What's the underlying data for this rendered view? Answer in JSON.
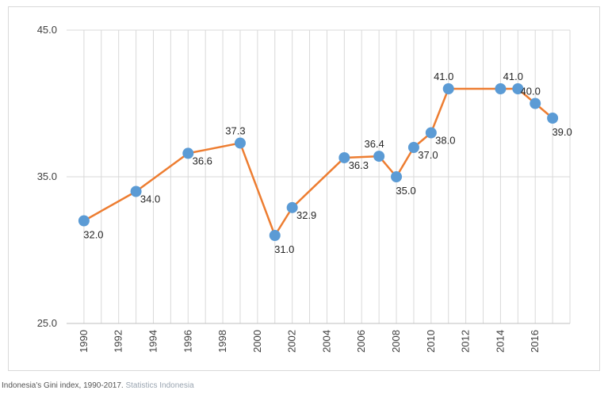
{
  "caption": {
    "text": "Indonesia's Gini index, 1990-2017.",
    "source": "Statistics Indonesia"
  },
  "colors": {
    "line": "#ED7D31",
    "marker": "#5B9BD5",
    "grid": "#d9d9d9",
    "axis": "#bfbfbf"
  },
  "chart_data": {
    "type": "line",
    "title": "",
    "xlabel": "",
    "ylabel": "",
    "xlim": [
      1989,
      2018
    ],
    "ylim": [
      25.0,
      45.0
    ],
    "grid": true,
    "legend": "none",
    "y_ticks": [
      "25.0",
      "35.0",
      "45.0"
    ],
    "y_tick_values": [
      25,
      35,
      45
    ],
    "x_ticks": [
      "1990",
      "1992",
      "1994",
      "1996",
      "1998",
      "2000",
      "2002",
      "2004",
      "2006",
      "2008",
      "2010",
      "2012",
      "2014",
      "2016"
    ],
    "series": [
      {
        "x": [
          1990,
          1993,
          1996,
          1999,
          2001,
          2002,
          2005,
          2007,
          2008,
          2009,
          2010,
          2011,
          2014,
          2015,
          2016,
          2017
        ],
        "values": [
          32.0,
          34.0,
          36.6,
          37.3,
          31.0,
          32.9,
          36.3,
          36.4,
          35.0,
          37.0,
          38.0,
          41.0,
          41.0,
          41.0,
          40.0,
          39.0
        ],
        "labels": [
          "32.0",
          "34.0",
          "36.6",
          "37.3",
          "31.0",
          "32.9",
          "36.3",
          "36.4",
          "35.0",
          "37.0",
          "38.0",
          "41.0",
          "",
          "41.0",
          "40.0",
          "39.0"
        ]
      }
    ]
  }
}
